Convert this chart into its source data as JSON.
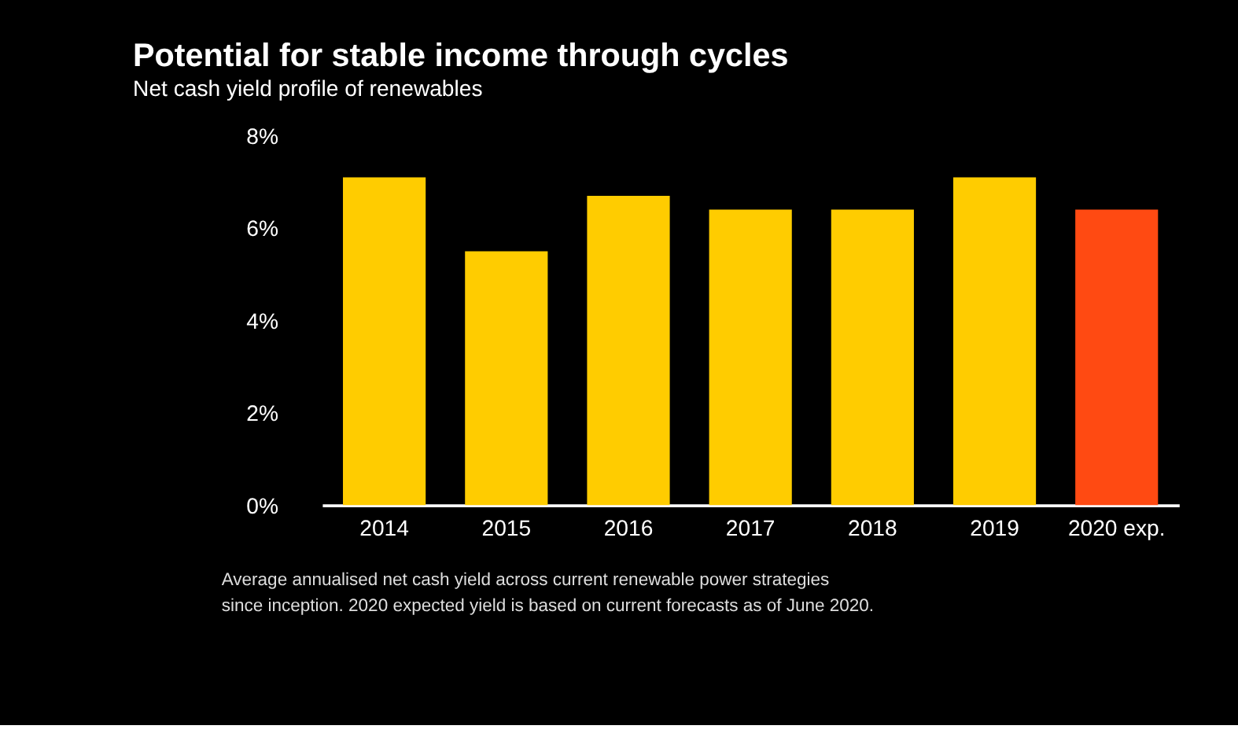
{
  "chart_data": {
    "type": "bar",
    "title": "Potential for stable income through cycles",
    "subtitle": "Net cash yield profile of renewables",
    "categories": [
      "2014",
      "2015",
      "2016",
      "2017",
      "2018",
      "2019",
      "2020 exp."
    ],
    "values": [
      7.1,
      5.5,
      6.7,
      6.4,
      6.4,
      7.1,
      6.4
    ],
    "colors": [
      "#ffcc00",
      "#ffcc00",
      "#ffcc00",
      "#ffcc00",
      "#ffcc00",
      "#ffcc00",
      "#ff4a12"
    ],
    "ylim": [
      0,
      8
    ],
    "yticks": [
      {
        "value": 0,
        "label": "0%"
      },
      {
        "value": 2,
        "label": "2%"
      },
      {
        "value": 4,
        "label": "4%"
      },
      {
        "value": 6,
        "label": "6%"
      },
      {
        "value": 8,
        "label": "8%"
      }
    ],
    "grid": false,
    "annotations": [
      "Average annualised net cash yield across current renewable power strategies",
      "since inception. 2020 expected yield is based on current forecasts as of June 2020."
    ]
  }
}
